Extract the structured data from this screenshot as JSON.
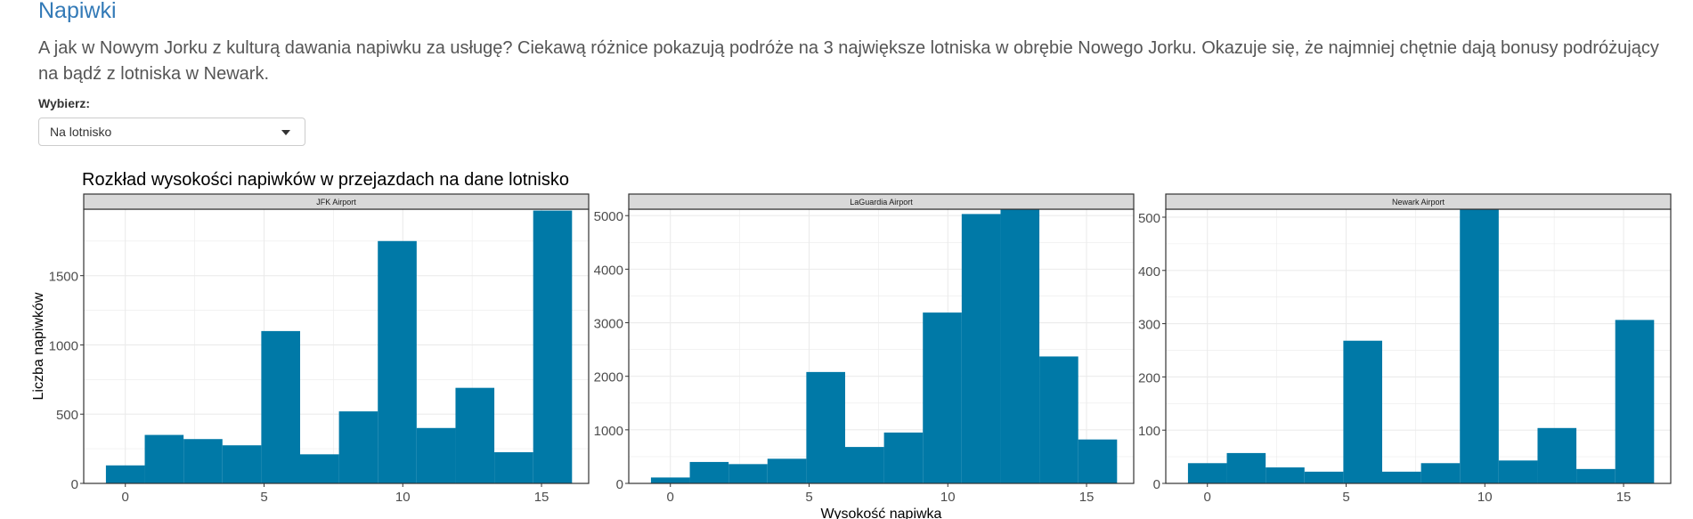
{
  "page": {
    "title": "Napiwki",
    "description": "A jak w Nowym Jorku z kulturą dawania napiwku za usługę? Ciekawą różnice pokazują podróże na 3 największe lotniska w obrębie Nowego Jorku. Okazuje się, że najmniej chętnie dają bonusy podróżujący na bądź z lotniska w Newark."
  },
  "selector": {
    "label": "Wybierz:",
    "value": "Na lotnisko"
  },
  "colors": {
    "bar": "#0079a7",
    "strip": "#d9d9d9",
    "grid": "#ebebeb",
    "title_link": "#337ab7"
  },
  "chart_data": {
    "type": "bar",
    "title": "Rozkład wysokości napiwków w przejazdach na dane lotnisko",
    "xlabel": "Wysokość napiwka",
    "ylabel": "Liczba napiwków",
    "grid": true,
    "bin_centers": [
      0,
      1.4,
      2.8,
      4.2,
      5.6,
      7,
      8.4,
      9.8,
      11.2,
      12.6,
      14,
      15.4
    ],
    "bin_width": 1.4,
    "xlim": [
      -1.5,
      16.7
    ],
    "xticks": [
      0,
      5,
      10,
      15
    ],
    "panels": [
      {
        "name": "JFK Airport",
        "values": [
          130,
          350,
          320,
          275,
          1100,
          210,
          520,
          1750,
          400,
          690,
          225,
          1970
        ],
        "ylim": [
          0,
          1980
        ],
        "yticks": [
          0,
          500,
          1000,
          1500
        ]
      },
      {
        "name": "LaGuardia Airport",
        "values": [
          110,
          400,
          360,
          460,
          2080,
          680,
          950,
          3190,
          5030,
          5120,
          2370,
          820
        ],
        "ylim": [
          0,
          5120
        ],
        "yticks": [
          0,
          1000,
          2000,
          3000,
          4000,
          5000
        ]
      },
      {
        "name": "Newark Airport",
        "values": [
          38,
          57,
          30,
          22,
          268,
          22,
          38,
          515,
          43,
          104,
          27,
          307
        ],
        "ylim": [
          0,
          515
        ],
        "yticks": [
          0,
          100,
          200,
          300,
          400,
          500
        ]
      }
    ]
  }
}
